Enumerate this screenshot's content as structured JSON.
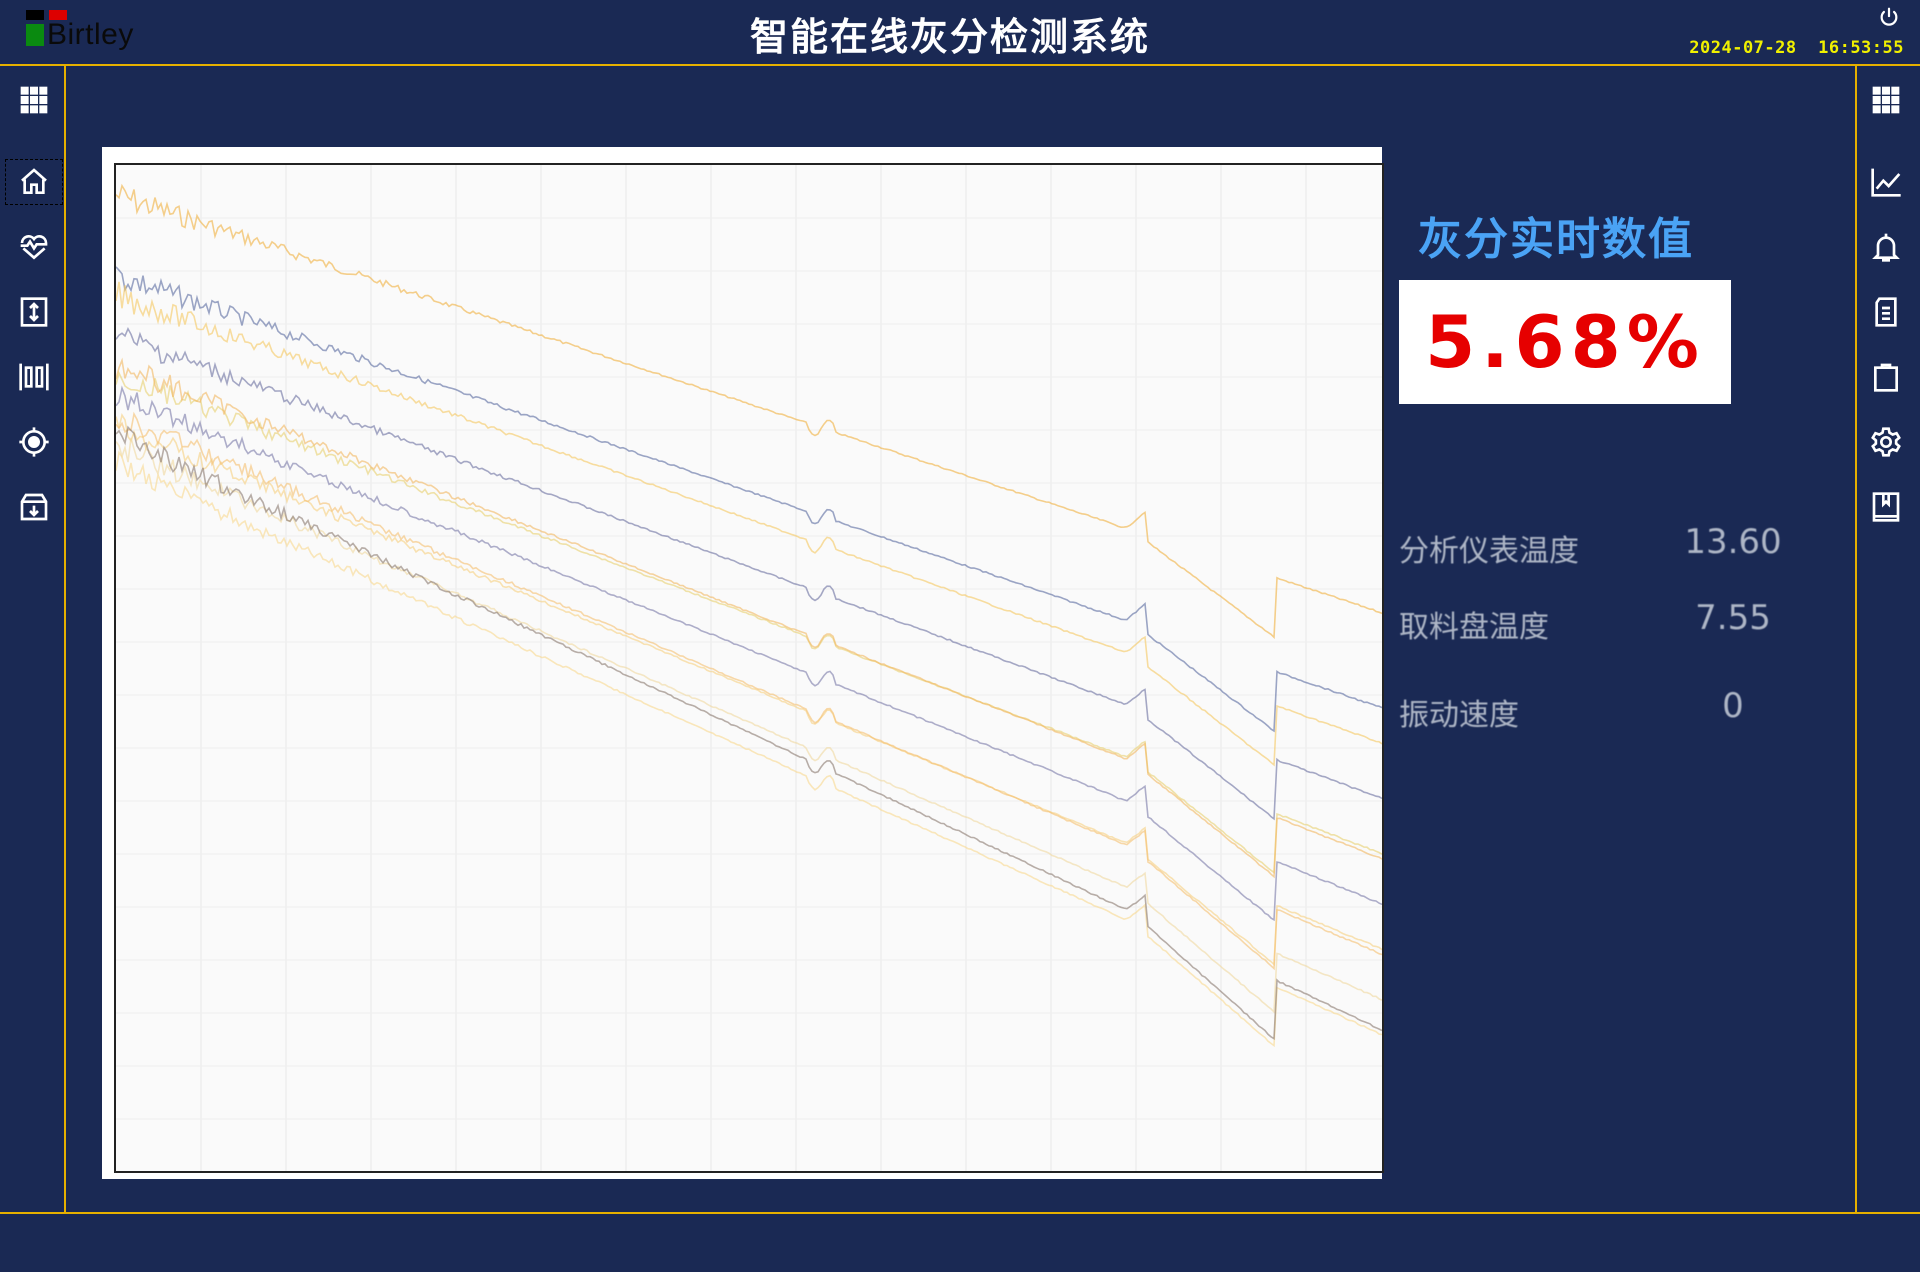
{
  "header": {
    "logo_text": "Birtley",
    "title": "智能在线灰分检测系统",
    "date": "2024-07-28",
    "time": "16:53:55"
  },
  "left_sidebar": [
    "apps-grid-icon",
    "home-icon",
    "heart-pulse-icon",
    "vertical-arrows-icon",
    "barcode-icon",
    "target-icon",
    "archive-download-icon"
  ],
  "right_sidebar": [
    "apps-grid-icon",
    "line-chart-icon",
    "bell-icon",
    "document-icon",
    "clipboard-icon",
    "gear-icon",
    "book-icon"
  ],
  "ash": {
    "title": "灰分实时数值",
    "value": "5.68%",
    "value_color": "#e60000"
  },
  "metrics": [
    {
      "label": "分析仪表温度",
      "value": "13.60"
    },
    {
      "label": "取料盘温度",
      "value": "7.55"
    },
    {
      "label": "振动速度",
      "value": "0"
    }
  ],
  "colors": {
    "background": "#1a2954",
    "accent_line": "#e6b000",
    "title_blue": "#4aa3f5",
    "datetime": "#f0f000"
  }
}
